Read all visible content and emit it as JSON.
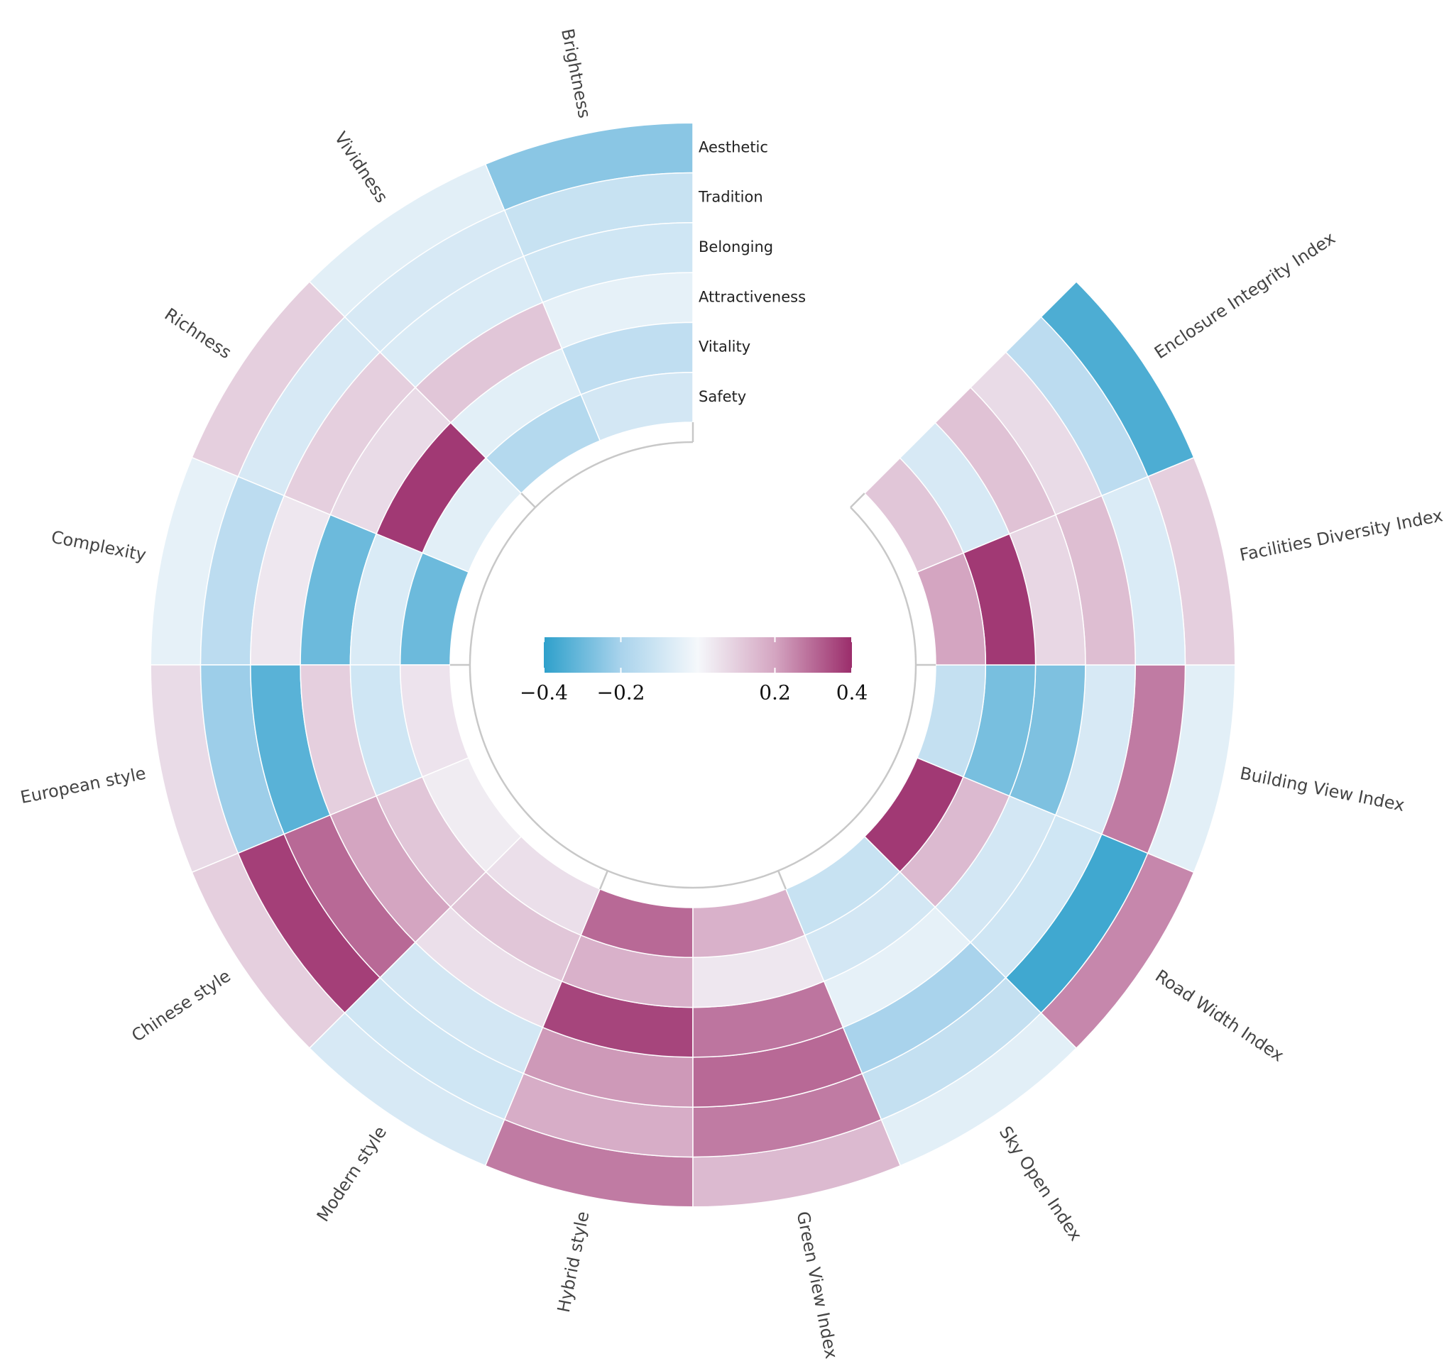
{
  "chart_data": {
    "type": "polar-heatmap",
    "categories": [
      "Brightness",
      "Vividness",
      "Richness",
      "Complexity",
      "European style",
      "Chinese style",
      "Modern style",
      "Hybrid style",
      "Green View Index",
      "Sky Open Index",
      "Road Width Index",
      "Building View Index",
      "Facilities Diversity Index",
      "Enclosure Integrity Index"
    ],
    "series": [
      {
        "name": "Aesthetic",
        "values": [
          -0.25,
          -0.05,
          0.1,
          -0.04,
          0.07,
          0.1,
          -0.08,
          0.27,
          0.15,
          -0.05,
          0.25,
          -0.05,
          0.1,
          -0.35
        ]
      },
      {
        "name": "Tradition",
        "values": [
          -0.12,
          -0.08,
          -0.08,
          -0.15,
          -0.22,
          0.37,
          -0.1,
          0.18,
          0.27,
          -0.13,
          -0.37,
          0.27,
          -0.07,
          -0.15
        ]
      },
      {
        "name": "Belonging",
        "values": [
          -0.1,
          -0.07,
          0.1,
          0.04,
          -0.33,
          0.3,
          -0.09,
          0.22,
          0.3,
          -0.2,
          -0.1,
          -0.08,
          0.14,
          0.07
        ]
      },
      {
        "name": "Attractiveness",
        "values": [
          -0.04,
          0.12,
          0.07,
          -0.3,
          0.1,
          0.2,
          0.06,
          0.36,
          0.28,
          -0.04,
          -0.09,
          -0.27,
          0.08,
          0.13
        ]
      },
      {
        "name": "Vitality",
        "values": [
          -0.14,
          -0.05,
          0.38,
          -0.07,
          -0.1,
          0.12,
          0.12,
          0.17,
          0.04,
          -0.09,
          0.15,
          -0.28,
          0.38,
          -0.08
        ]
      },
      {
        "name": "Safety",
        "values": [
          -0.09,
          -0.17,
          -0.05,
          -0.3,
          0.05,
          0.03,
          0.06,
          0.3,
          0.17,
          -0.12,
          0.38,
          -0.13,
          0.2,
          0.12
        ]
      }
    ],
    "clim": [
      -0.4,
      0.4
    ],
    "colorscale": [
      "#2ea0cb",
      "#a9d3ec",
      "#f5f8fb",
      "#d4a5c1",
      "#9b2d6b"
    ],
    "colorbar_ticks": [
      {
        "value": -0.4,
        "label": "−0.4"
      },
      {
        "value": -0.2,
        "label": "−0.2"
      },
      0.2,
      0.4
    ]
  }
}
